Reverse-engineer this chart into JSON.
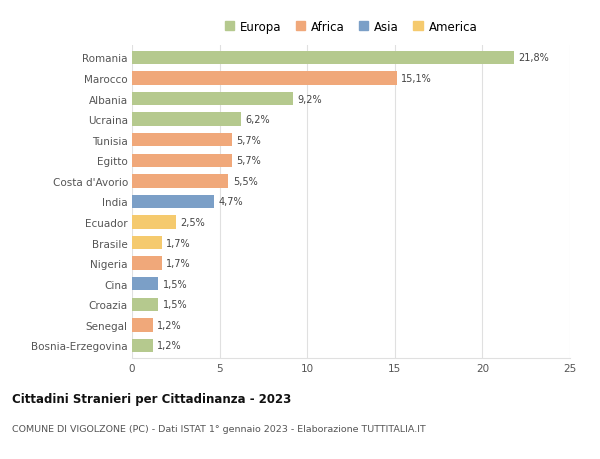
{
  "categories": [
    "Bosnia-Erzegovina",
    "Senegal",
    "Croazia",
    "Cina",
    "Nigeria",
    "Brasile",
    "Ecuador",
    "India",
    "Costa d'Avorio",
    "Egitto",
    "Tunisia",
    "Ucraina",
    "Albania",
    "Marocco",
    "Romania"
  ],
  "values": [
    1.2,
    1.2,
    1.5,
    1.5,
    1.7,
    1.7,
    2.5,
    4.7,
    5.5,
    5.7,
    5.7,
    6.2,
    9.2,
    15.1,
    21.8
  ],
  "labels": [
    "1,2%",
    "1,2%",
    "1,5%",
    "1,5%",
    "1,7%",
    "1,7%",
    "2,5%",
    "4,7%",
    "5,5%",
    "5,7%",
    "5,7%",
    "6,2%",
    "9,2%",
    "15,1%",
    "21,8%"
  ],
  "colors": [
    "#b5c98e",
    "#f0a87a",
    "#b5c98e",
    "#7b9fc7",
    "#f0a87a",
    "#f5ca6e",
    "#f5ca6e",
    "#7b9fc7",
    "#f0a87a",
    "#f0a87a",
    "#f0a87a",
    "#b5c98e",
    "#b5c98e",
    "#f0a87a",
    "#b5c98e"
  ],
  "legend_labels": [
    "Europa",
    "Africa",
    "Asia",
    "America"
  ],
  "legend_colors": [
    "#b5c98e",
    "#f0a87a",
    "#7b9fc7",
    "#f5ca6e"
  ],
  "title": "Cittadini Stranieri per Cittadinanza - 2023",
  "subtitle": "COMUNE DI VIGOLZONE (PC) - Dati ISTAT 1° gennaio 2023 - Elaborazione TUTTITALIA.IT",
  "xlim": [
    0,
    25
  ],
  "xticks": [
    0,
    5,
    10,
    15,
    20,
    25
  ],
  "background_color": "#ffffff",
  "grid_color": "#e0e0e0",
  "bar_height": 0.65
}
